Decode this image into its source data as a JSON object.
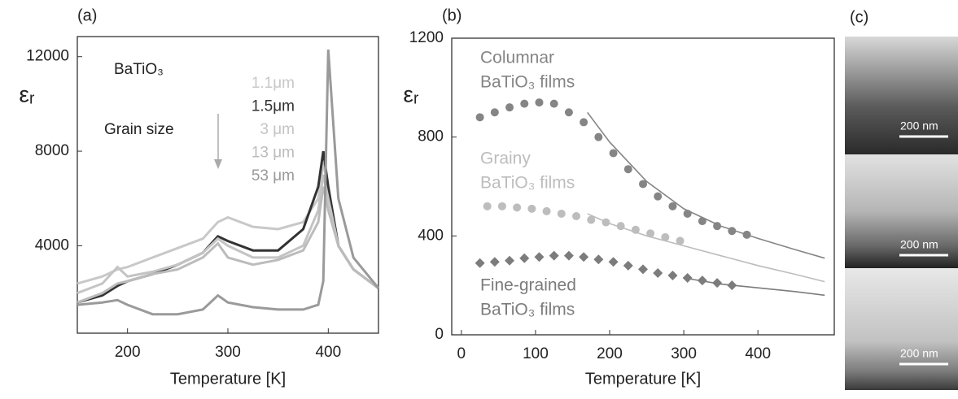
{
  "chart_data": [
    {
      "type": "line",
      "panel_label": "(a)",
      "x_label": "Temperature [K]",
      "y_label": "εᵣ",
      "annotations": [
        "BaTiO₃",
        "Grain size"
      ],
      "xlim": [
        150,
        450
      ],
      "xticks": [
        200,
        300,
        400
      ],
      "ylim": [
        300,
        12850
      ],
      "yticks": [
        4000,
        8000,
        12000
      ],
      "x": [
        150,
        175,
        190,
        200,
        225,
        250,
        275,
        290,
        300,
        325,
        350,
        375,
        390,
        395,
        400,
        410,
        425,
        450
      ],
      "series": [
        {
          "name": "1.1μm",
          "color": "#c8c8c8",
          "values": [
            2400,
            2700,
            3000,
            3100,
            3500,
            3900,
            4300,
            5000,
            5200,
            4800,
            4700,
            5000,
            6000,
            7500,
            6500,
            4000,
            3000,
            2200
          ]
        },
        {
          "name": "1.5μm",
          "color": "#333333",
          "values": [
            1600,
            1900,
            2300,
            2500,
            2800,
            3200,
            3700,
            4400,
            4200,
            3800,
            3800,
            4700,
            6500,
            8000,
            6500,
            4000,
            3000,
            2200
          ]
        },
        {
          "name": "3 μm",
          "color": "#c4c4c4",
          "values": [
            2000,
            2400,
            3100,
            2700,
            2900,
            3200,
            3700,
            4300,
            4000,
            3500,
            3500,
            4000,
            5500,
            7000,
            6000,
            4000,
            3000,
            2200
          ]
        },
        {
          "name": "13 μm",
          "color": "#bcbcbc",
          "values": [
            1600,
            2000,
            2400,
            2500,
            2800,
            3000,
            3500,
            4100,
            3500,
            3200,
            3400,
            3800,
            5000,
            6500,
            5500,
            4000,
            3000,
            2200
          ]
        },
        {
          "name": "53 μm",
          "color": "#9a9a9a",
          "values": [
            1500,
            1600,
            1700,
            1500,
            1100,
            1100,
            1300,
            1900,
            1600,
            1400,
            1300,
            1300,
            1500,
            2500,
            12300,
            6000,
            3500,
            2200
          ]
        }
      ]
    },
    {
      "type": "scatter",
      "panel_label": "(b)",
      "x_label": "Temperature [K]",
      "y_label": "εᵣ",
      "xlim": [
        -13,
        503
      ],
      "xticks": [
        0,
        100,
        200,
        300,
        400
      ],
      "ylim": [
        0,
        1200
      ],
      "yticks": [
        0,
        400,
        800,
        1200
      ],
      "series": [
        {
          "label_lines": [
            "Columnar",
            "BaTiO₃ films"
          ],
          "color": "#858585",
          "marker": "circle",
          "x": [
            25,
            45,
            65,
            85,
            105,
            125,
            145,
            165,
            185,
            205,
            225,
            245,
            265,
            285,
            305,
            325,
            345,
            365,
            385
          ],
          "values": [
            880,
            900,
            920,
            935,
            940,
            935,
            900,
            860,
            800,
            735,
            670,
            610,
            560,
            520,
            490,
            460,
            440,
            420,
            405
          ],
          "fit": {
            "x": [
              170,
              200,
              250,
              300,
              350,
              400,
              450,
              490
            ],
            "values": [
              900,
              780,
              620,
              510,
              440,
              390,
              345,
              310
            ]
          }
        },
        {
          "label_lines": [
            "Grainy",
            "BaTiO₃ films"
          ],
          "color": "#bdbdbd",
          "marker": "circle",
          "x": [
            35,
            55,
            75,
            95,
            115,
            135,
            155,
            175,
            195,
            215,
            235,
            255,
            275,
            295
          ],
          "values": [
            520,
            520,
            515,
            510,
            500,
            490,
            480,
            465,
            455,
            440,
            425,
            410,
            395,
            380
          ],
          "fit": {
            "x": [
              170,
              200,
              250,
              300,
              350,
              400,
              450,
              490
            ],
            "values": [
              490,
              450,
              400,
              360,
              320,
              280,
              245,
              215
            ]
          }
        },
        {
          "label_lines": [
            "Fine-grained",
            "BaTiO₃ films"
          ],
          "color": "#7c7c7c",
          "marker": "diamond",
          "x": [
            25,
            45,
            65,
            85,
            105,
            125,
            145,
            165,
            185,
            205,
            225,
            245,
            265,
            285,
            305,
            325,
            345,
            365
          ],
          "values": [
            290,
            295,
            300,
            310,
            315,
            320,
            320,
            315,
            305,
            295,
            280,
            265,
            250,
            240,
            230,
            220,
            210,
            200
          ],
          "fit": {
            "x": [
              300,
              350,
              400,
              450,
              490
            ],
            "values": [
              230,
              205,
              190,
              175,
              160
            ]
          }
        }
      ]
    }
  ],
  "panel_c": {
    "panel_label": "(c)",
    "scale_bars": [
      "200 nm",
      "200 nm",
      "200 nm"
    ]
  }
}
